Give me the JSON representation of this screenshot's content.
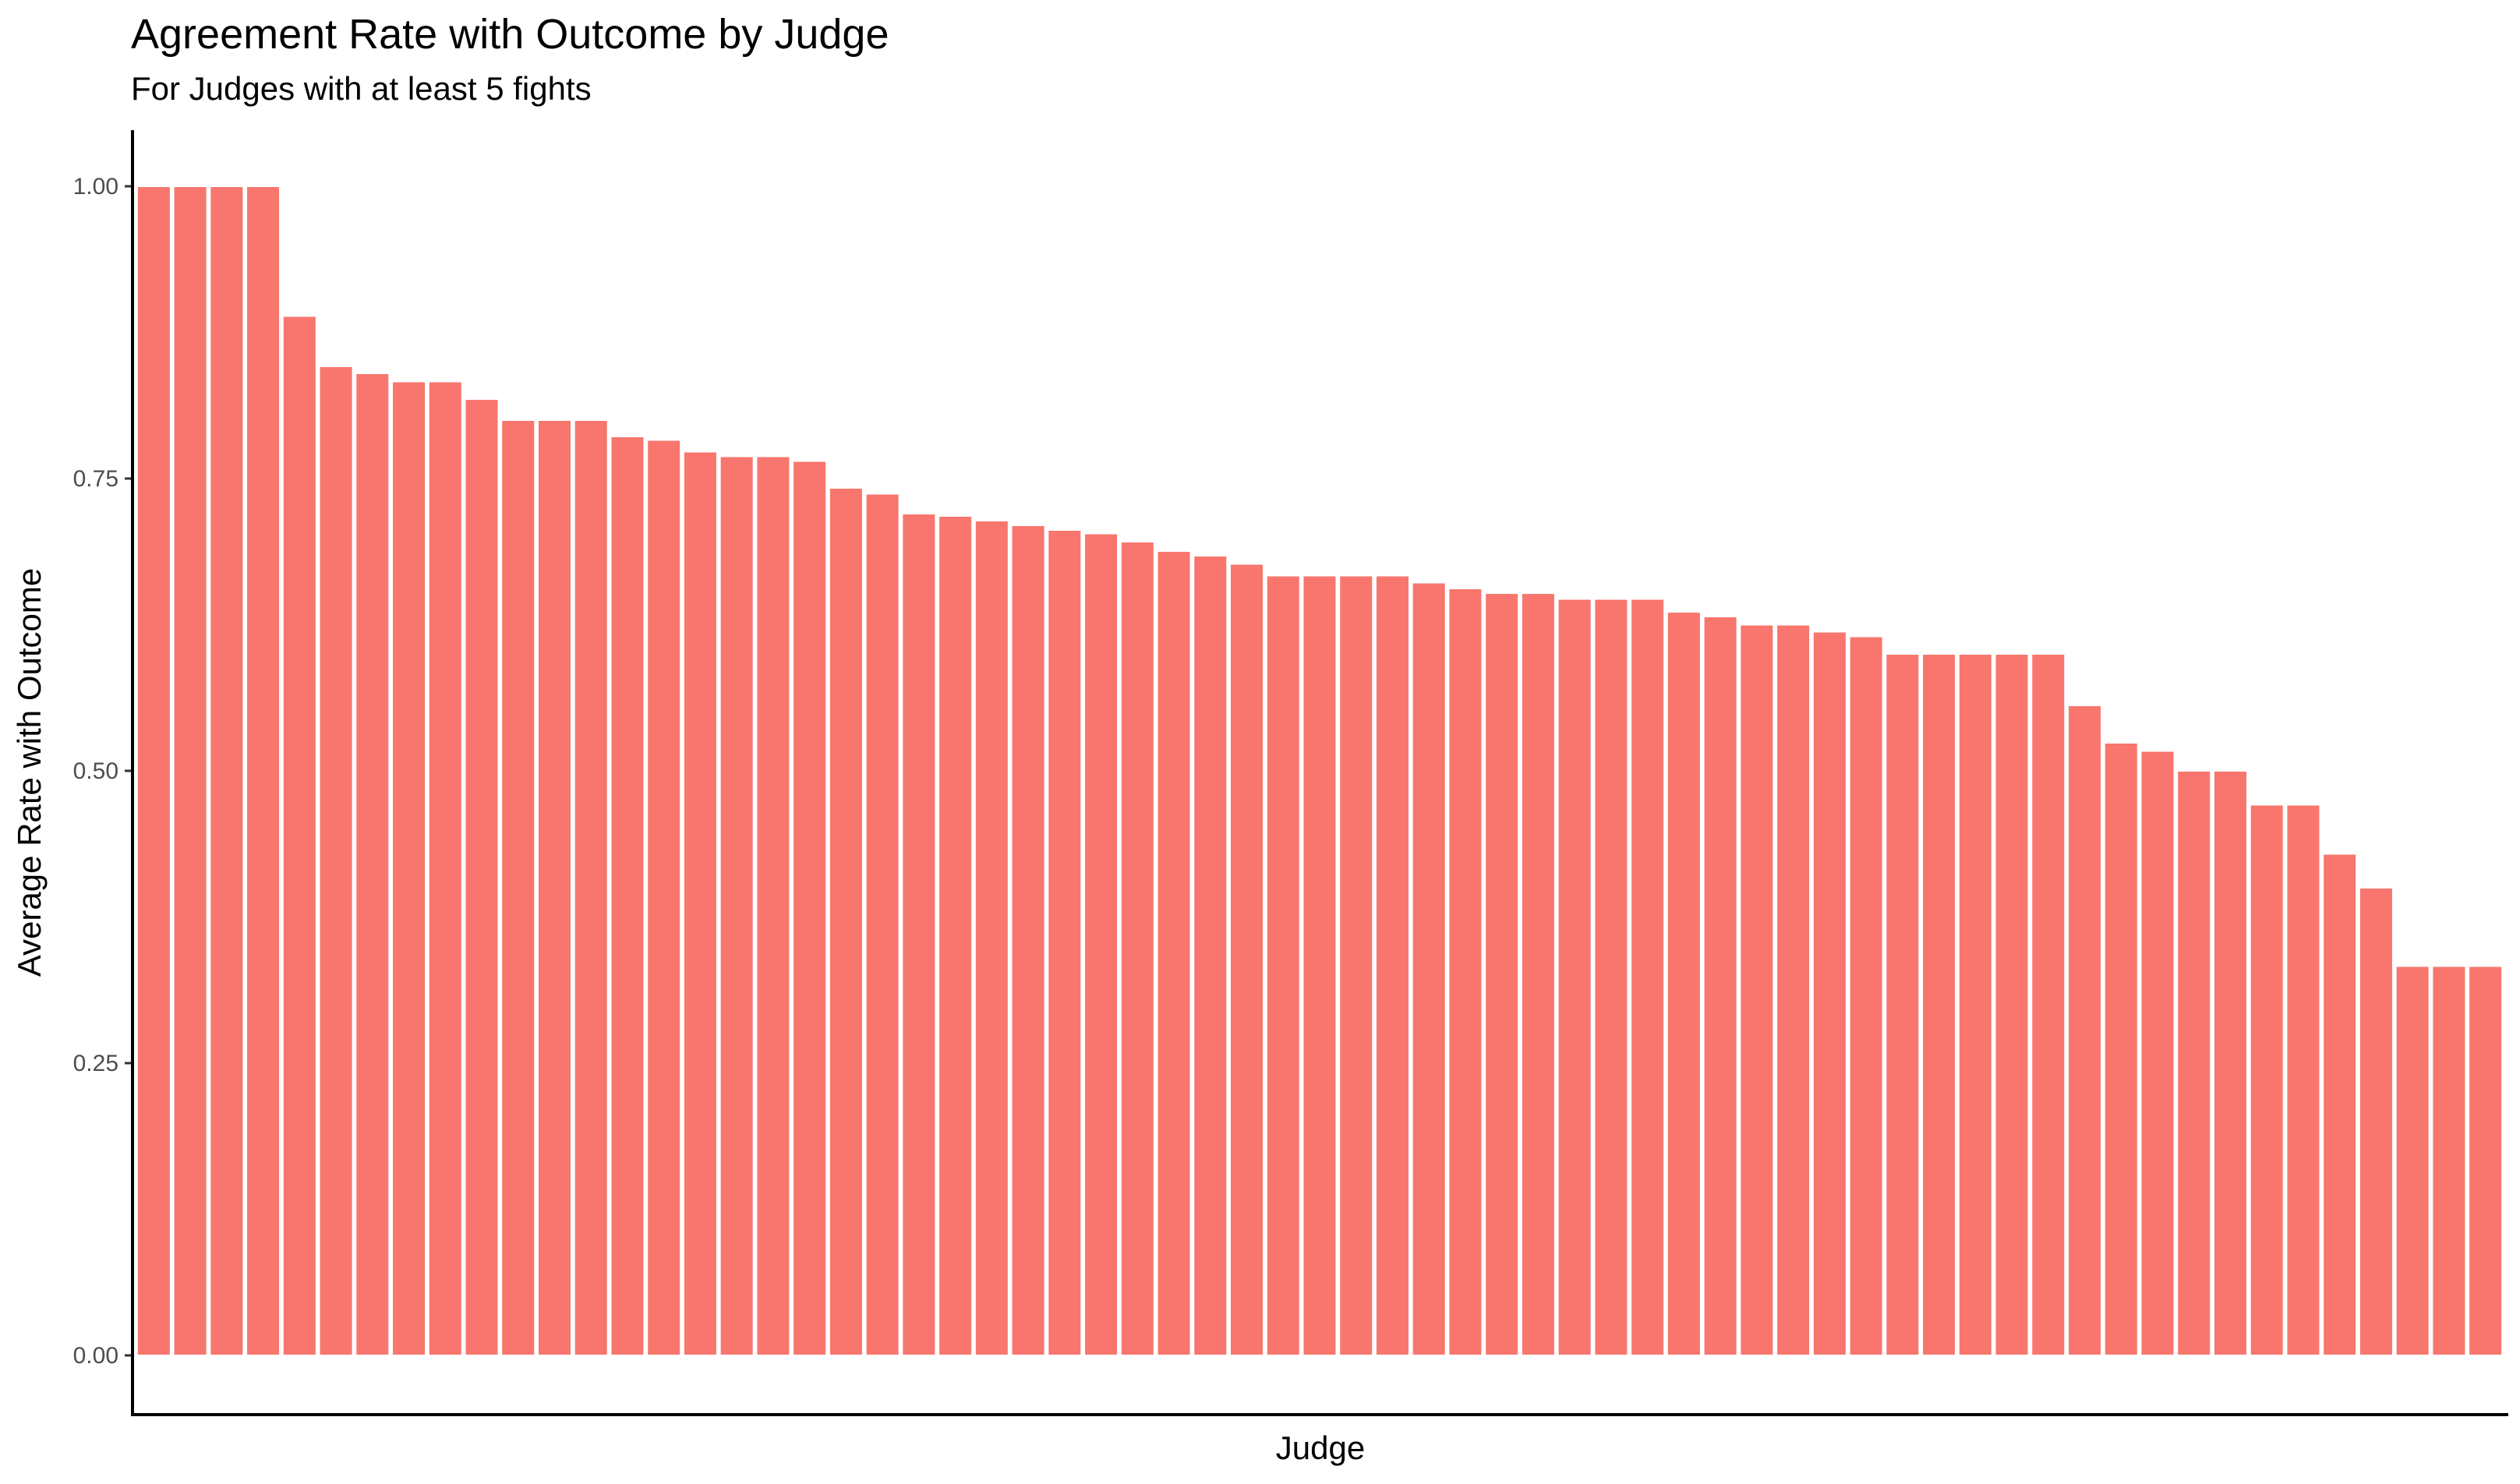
{
  "chart_data": {
    "type": "bar",
    "title": "Agreement Rate with Outcome by Judge",
    "subtitle": "For Judges with at least 5 fights",
    "xlabel": "Judge",
    "ylabel": "Average Rate with Outcome",
    "ylim": [
      0,
      1
    ],
    "yticks": [
      "0.00",
      "0.25",
      "0.50",
      "0.75",
      "1.00"
    ],
    "ytick_values": [
      0,
      0.25,
      0.5,
      0.75,
      1.0
    ],
    "grid": false,
    "bar_color": "#F8766D",
    "values": [
      1.0,
      1.0,
      1.0,
      1.0,
      0.889,
      0.846,
      0.84,
      0.833,
      0.833,
      0.818,
      0.8,
      0.8,
      0.8,
      0.786,
      0.783,
      0.773,
      0.769,
      0.769,
      0.765,
      0.742,
      0.737,
      0.72,
      0.718,
      0.714,
      0.71,
      0.706,
      0.703,
      0.696,
      0.688,
      0.684,
      0.677,
      0.667,
      0.667,
      0.667,
      0.667,
      0.661,
      0.656,
      0.652,
      0.652,
      0.647,
      0.647,
      0.647,
      0.636,
      0.632,
      0.625,
      0.625,
      0.619,
      0.615,
      0.6,
      0.6,
      0.6,
      0.6,
      0.6,
      0.556,
      0.524,
      0.517,
      0.5,
      0.5,
      0.471,
      0.471,
      0.429,
      0.4,
      0.333,
      0.333,
      0.333
    ]
  }
}
